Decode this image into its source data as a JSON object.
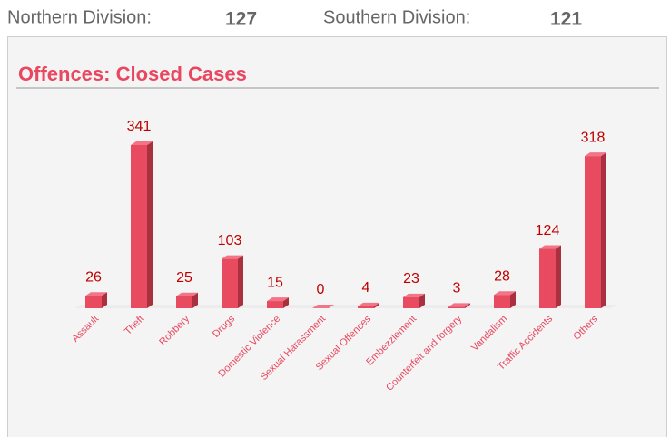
{
  "header": {
    "stats": [
      {
        "label": "Northern Division:",
        "value": 127
      },
      {
        "label": "Southern Division:",
        "value": 121
      }
    ]
  },
  "chart_data": {
    "type": "bar",
    "title": "Offences: Closed Cases",
    "categories": [
      "Assault",
      "Theft",
      "Robbery",
      "Drugs",
      "Domestic Violence",
      "Sexual Harassment",
      "Sexual Offences",
      "Embezzlement",
      "Counterfeit and forgery",
      "Vandalism",
      "Traffic Accidents",
      "Others"
    ],
    "values": [
      26,
      341,
      25,
      103,
      15,
      0,
      4,
      23,
      3,
      28,
      124,
      318
    ],
    "color": "#e84a5f"
  }
}
